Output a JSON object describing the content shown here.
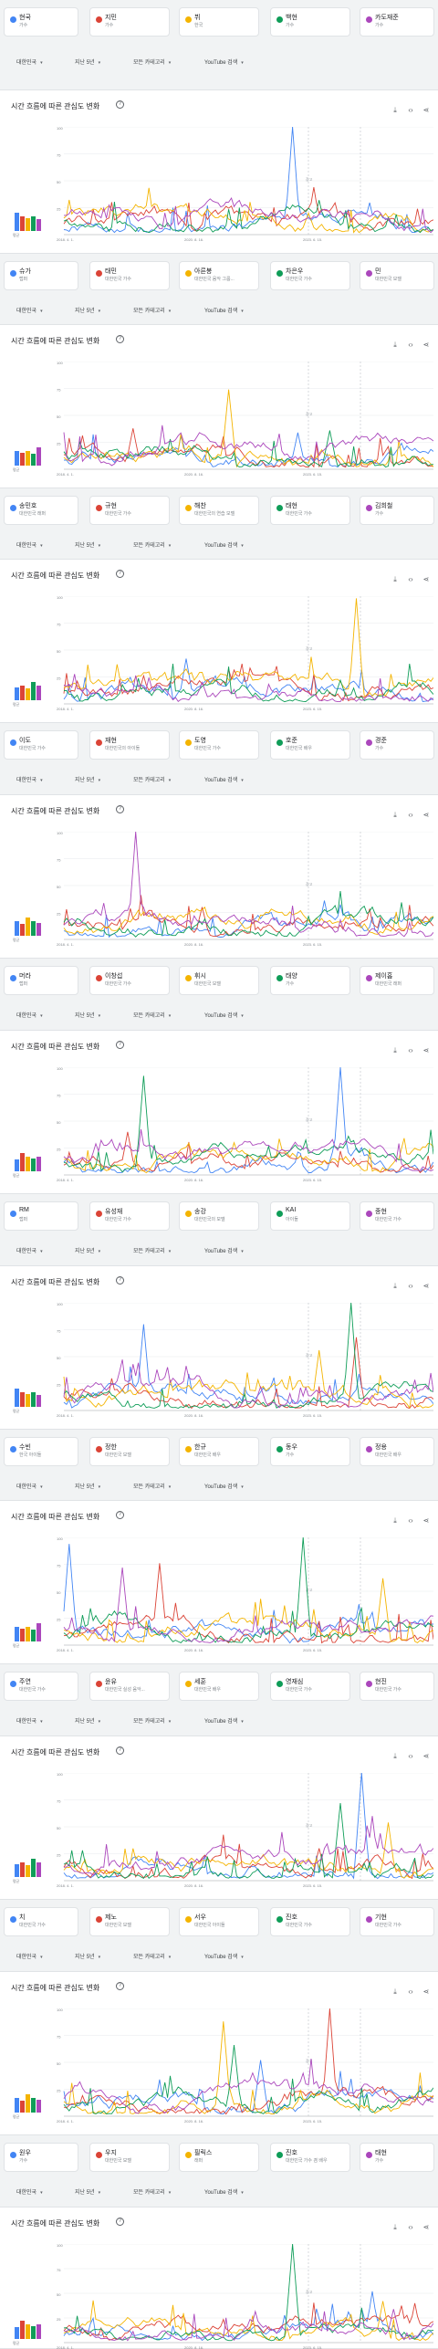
{
  "colors": {
    "series": [
      "#4285f4",
      "#db4437",
      "#f4b400",
      "#0f9d58",
      "#ab47bc"
    ]
  },
  "filters": {
    "region": "대한민국",
    "period": "지난 5년",
    "category": "모든 카테고리",
    "source": "YouTube 검색"
  },
  "chart": {
    "title": "시간 흐름에 따른 관심도 변화",
    "help_icon": "help-icon",
    "download_icon": "download-icon",
    "embed_icon": "code-icon",
    "share_icon": "share-icon",
    "average": "평균",
    "y_ticks": [
      "100",
      "75",
      "50",
      "25"
    ],
    "x_ticks": [
      "2018. 4. 1.",
      "2020. 8. 16.",
      "2023. 6. 15."
    ],
    "note": "참고"
  },
  "groups": [
    [
      {
        "name": "현국",
        "type": "가수"
      },
      {
        "name": "지민",
        "type": "가수"
      },
      {
        "name": "뷔",
        "type": "한국"
      },
      {
        "name": "백현",
        "type": "가수"
      },
      {
        "name": "카도재준",
        "type": "가수"
      }
    ],
    [
      {
        "name": "슈가",
        "type": "랩퍼"
      },
      {
        "name": "태민",
        "type": "대한민국 가수"
      },
      {
        "name": "아른봉",
        "type": "대한민국 음악 그룹..."
      },
      {
        "name": "차은우",
        "type": "대한민국 가수"
      },
      {
        "name": "민",
        "type": "대한민국 모델"
      }
    ],
    [
      {
        "name": "송민호",
        "type": "대한민국 래퍼"
      },
      {
        "name": "규현",
        "type": "대한민국 가수"
      },
      {
        "name": "해찬",
        "type": "대한민국의 연습 모델"
      },
      {
        "name": "태현",
        "type": "대한민국 가수"
      },
      {
        "name": "김희철",
        "type": "가수"
      }
    ],
    [
      {
        "name": "이도",
        "type": "대한민국 가수"
      },
      {
        "name": "재현",
        "type": "대한민국의 아이돌"
      },
      {
        "name": "도영",
        "type": "대한민국 가수"
      },
      {
        "name": "호준",
        "type": "대한민국 배우"
      },
      {
        "name": "경준",
        "type": "가수"
      }
    ],
    [
      {
        "name": "머라",
        "type": "랩퍼"
      },
      {
        "name": "이창섭",
        "type": "대한민국 가수"
      },
      {
        "name": "휘시",
        "type": "대한민국 모델"
      },
      {
        "name": "태양",
        "type": "가수"
      },
      {
        "name": "제이홉",
        "type": "대한민국 래퍼"
      }
    ],
    [
      {
        "name": "RM",
        "type": "랩퍼"
      },
      {
        "name": "유성재",
        "type": "대한민국 가수"
      },
      {
        "name": "송강",
        "type": "대한민국의 모델"
      },
      {
        "name": "KAI",
        "type": "아이돌"
      },
      {
        "name": "종현",
        "type": "대한민국 가수"
      }
    ],
    [
      {
        "name": "수빈",
        "type": "한국 아이돌"
      },
      {
        "name": "정한",
        "type": "대한민국 모델"
      },
      {
        "name": "한규",
        "type": "대한민국 배우"
      },
      {
        "name": "동우",
        "type": "가수"
      },
      {
        "name": "정용",
        "type": "대한민국 배우"
      }
    ],
    [
      {
        "name": "주연",
        "type": "대한민국 가수"
      },
      {
        "name": "윤유",
        "type": "대한민국 실성 음악..."
      },
      {
        "name": "세훈",
        "type": "대한민국 배우"
      },
      {
        "name": "영재심",
        "type": "대한민국 가수"
      },
      {
        "name": "현진",
        "type": "대한민국 가수"
      }
    ],
    [
      {
        "name": "치",
        "type": "대한민국 가수"
      },
      {
        "name": "제노",
        "type": "대한민국 모델"
      },
      {
        "name": "서우",
        "type": "대한민국 아이돌"
      },
      {
        "name": "진호",
        "type": "대한민국 가수"
      },
      {
        "name": "기현",
        "type": "대한민국 가수"
      }
    ],
    [
      {
        "name": "원우",
        "type": "가수"
      },
      {
        "name": "우지",
        "type": "대한민국 모델"
      },
      {
        "name": "필릭스",
        "type": "래퍼"
      },
      {
        "name": "진호",
        "type": "대한민국 가수 겸 배우"
      },
      {
        "name": "태현",
        "type": "가수"
      }
    ]
  ]
}
